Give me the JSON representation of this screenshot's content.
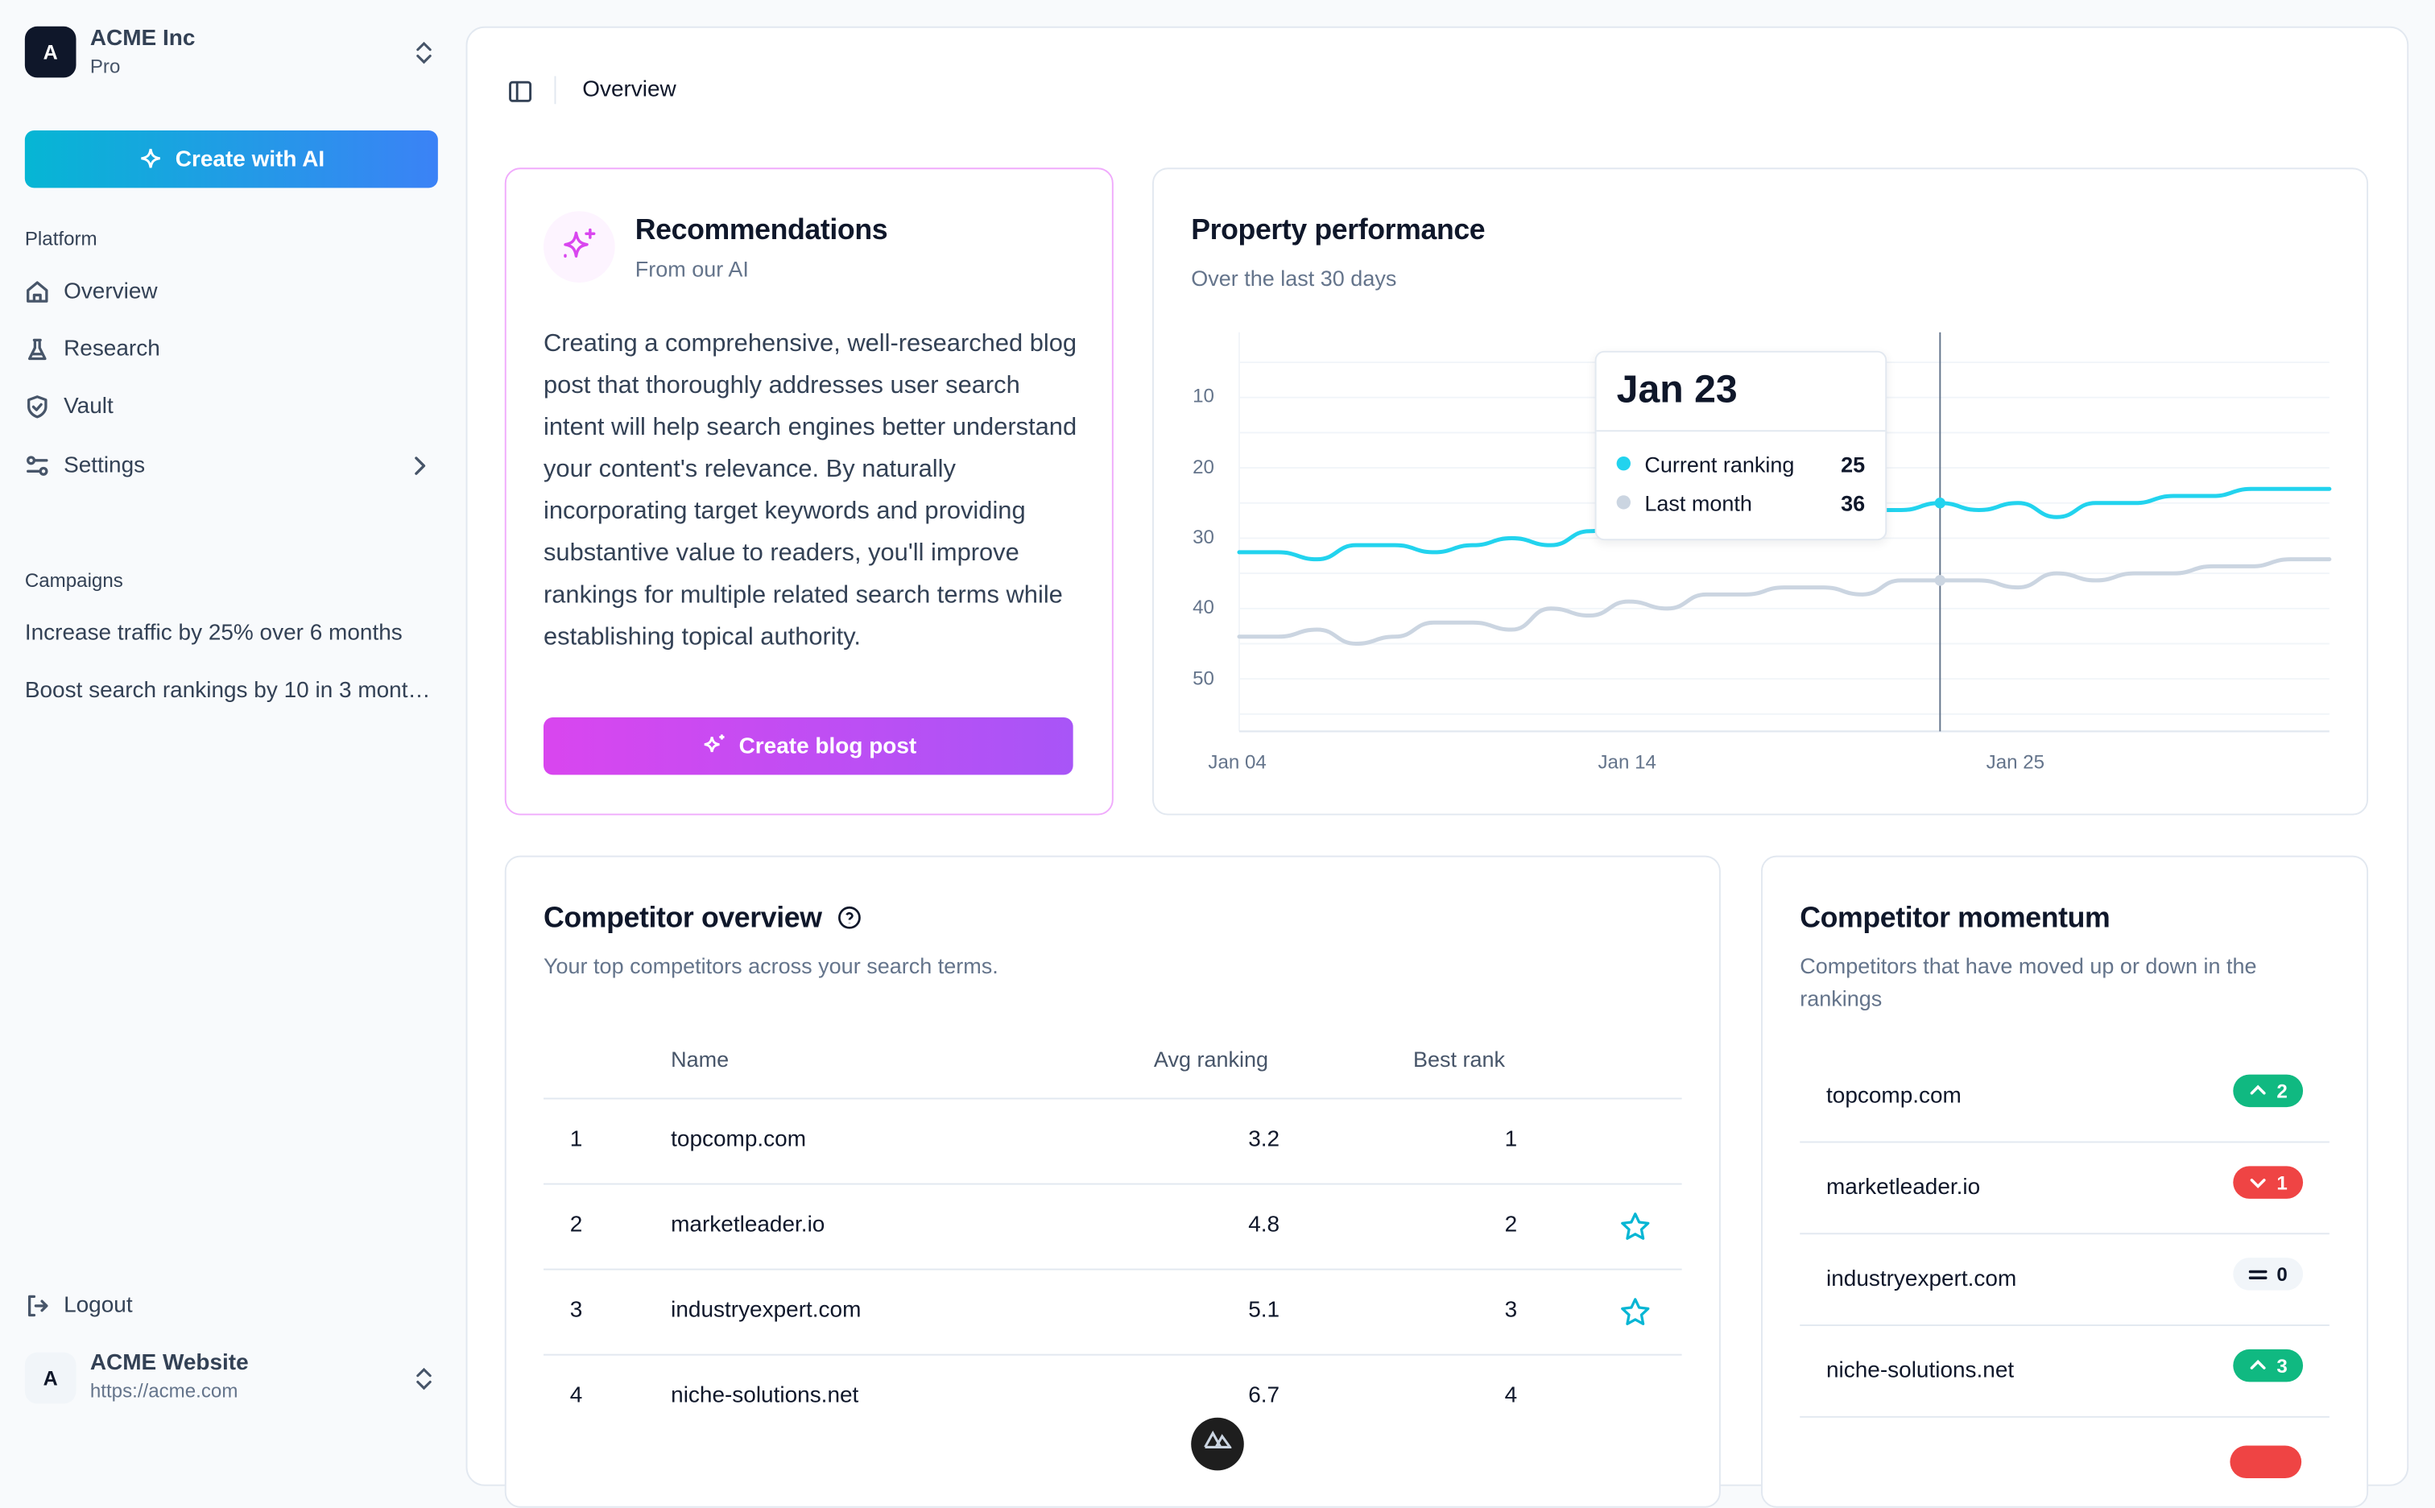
{
  "org": {
    "avatar_letter": "A",
    "name": "ACME Inc",
    "plan": "Pro"
  },
  "sidebar": {
    "create_button": "Create with AI",
    "platform_label": "Platform",
    "items": [
      {
        "label": "Overview",
        "icon": "home-icon"
      },
      {
        "label": "Research",
        "icon": "flask-icon"
      },
      {
        "label": "Vault",
        "icon": "shield-check-icon"
      },
      {
        "label": "Settings",
        "icon": "sliders-icon"
      }
    ],
    "campaigns_label": "Campaigns",
    "campaigns": [
      "Increase traffic by 25% over 6 months",
      "Boost search rankings by 10 in 3 mont…"
    ],
    "logout": "Logout",
    "site": {
      "avatar_letter": "A",
      "name": "ACME Website",
      "url": "https://acme.com"
    }
  },
  "header": {
    "breadcrumb": "Overview"
  },
  "recommendations": {
    "title": "Recommendations",
    "subtitle": "From our AI",
    "body": "Creating a comprehensive, well-researched blog post that thoroughly addresses user search intent will help search engines better understand your content's relevance. By naturally incorporating target keywords and providing substantive value to readers, you'll improve rankings for multiple related search terms while establishing topical authority.",
    "button": "Create blog post"
  },
  "performance": {
    "title": "Property performance",
    "subtitle": "Over the last 30 days",
    "tooltip": {
      "date": "Jan 23",
      "rows": [
        {
          "label": "Current ranking",
          "value": "25"
        },
        {
          "label": "Last month",
          "value": "36"
        }
      ]
    }
  },
  "chart_data": {
    "type": "line",
    "x": [
      "Jan 04",
      "Jan 05",
      "Jan 06",
      "Jan 07",
      "Jan 08",
      "Jan 09",
      "Jan 10",
      "Jan 11",
      "Jan 12",
      "Jan 13",
      "Jan 14",
      "Jan 16",
      "Jan 17",
      "Jan 18",
      "Jan 19",
      "Jan 20",
      "Jan 21",
      "Jan 22",
      "Jan 23",
      "Jan 24",
      "Jan 25",
      "Jan 26",
      "Jan 27",
      "Jan 28",
      "Jan 29",
      "Jan 30",
      "Jan 31",
      "Feb 01",
      "Feb 02"
    ],
    "x_tick_labels": [
      "Jan 04",
      "Jan 14",
      "Jan 25"
    ],
    "y_ticks": [
      10,
      20,
      30,
      40,
      50
    ],
    "y_reversed": true,
    "ylim": [
      0,
      57
    ],
    "grid": true,
    "highlight": "Jan 23",
    "series": [
      {
        "name": "Current ranking",
        "color": "#22d3ee",
        "values": [
          32,
          32,
          33,
          31,
          31,
          32,
          31,
          30,
          31,
          29,
          28,
          28,
          27,
          27,
          26,
          27,
          26,
          26,
          25,
          26,
          25,
          27,
          25,
          25,
          24,
          24,
          23,
          23,
          23
        ]
      },
      {
        "name": "Last month",
        "color": "#cbd5e1",
        "values": [
          44,
          44,
          43,
          45,
          44,
          42,
          42,
          43,
          40,
          41,
          39,
          40,
          38,
          38,
          37,
          37,
          38,
          36,
          36,
          36,
          37,
          35,
          36,
          35,
          35,
          34,
          34,
          33,
          33
        ]
      }
    ]
  },
  "competitors": {
    "title": "Competitor overview",
    "subtitle": "Your top competitors across your search terms.",
    "columns": [
      "Name",
      "Avg ranking",
      "Best rank"
    ],
    "rows": [
      {
        "rank": "1",
        "name": "topcomp.com",
        "avg": "3.2",
        "best": "1",
        "starred": false
      },
      {
        "rank": "2",
        "name": "marketleader.io",
        "avg": "4.8",
        "best": "2",
        "starred": true
      },
      {
        "rank": "3",
        "name": "industryexpert.com",
        "avg": "5.1",
        "best": "3",
        "starred": true
      },
      {
        "rank": "4",
        "name": "niche-solutions.net",
        "avg": "6.7",
        "best": "4",
        "starred": false
      }
    ]
  },
  "momentum": {
    "title": "Competitor momentum",
    "subtitle": "Competitors that have moved up or down in the rankings",
    "rows": [
      {
        "name": "topcomp.com",
        "direction": "up",
        "change": "2"
      },
      {
        "name": "marketleader.io",
        "direction": "down",
        "change": "1"
      },
      {
        "name": "industryexpert.com",
        "direction": "same",
        "change": "0"
      },
      {
        "name": "niche-solutions.net",
        "direction": "up",
        "change": "3"
      }
    ],
    "colors": {
      "up": "#10b981",
      "down": "#ef4444",
      "same": "#f1f5f9"
    }
  }
}
